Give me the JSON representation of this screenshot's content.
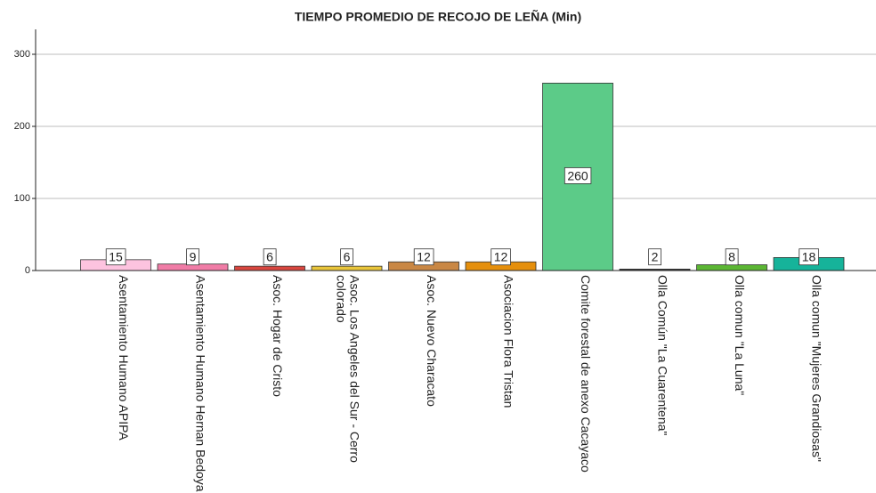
{
  "chart_data": {
    "type": "bar",
    "title": "TIEMPO PROMEDIO DE RECOJO DE LEÑA (Min)",
    "categories": [
      "Asentamiento Humano APIPA",
      "Asentamiento Humano Hernan Bedoya",
      "Asoc. Hogar de Cristo",
      "Asoc. Los Angeles del Sur - Cerro colorado",
      "Asoc. Nuevo Characato",
      "Asociacion Flora Tristan",
      "Comite forestal de anexo Cacayaco",
      "Olla Común \"La Cuarentena\"",
      "Olla comun \"La Luna\"",
      "Olla comun \"Mujeres Grandiosas\""
    ],
    "values": [
      15,
      9,
      6,
      6,
      12,
      12,
      260,
      2,
      8,
      18
    ],
    "colors": [
      "#fdc3df",
      "#f07ca6",
      "#d9463f",
      "#e9c53a",
      "#c98744",
      "#e58f0c",
      "#5ccb88",
      "#3a3a3a",
      "#5cb634",
      "#16b39a"
    ],
    "ylim": [
      0,
      300
    ],
    "yticks": [
      0,
      100,
      200,
      300
    ],
    "grid": true
  }
}
